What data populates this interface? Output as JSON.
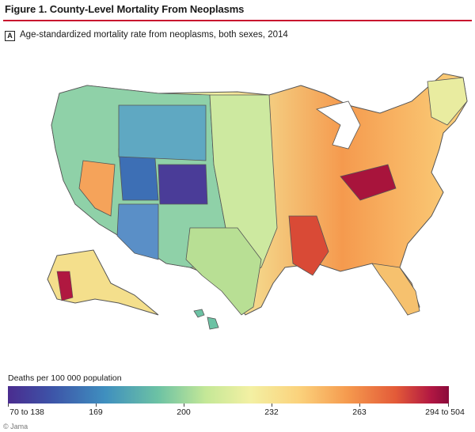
{
  "figure": {
    "title": "Figure 1. County-Level Mortality From Neoplasms",
    "panel_label": "A",
    "caption": "Age-standardized mortality rate from neoplasms, both sexes, 2014"
  },
  "legend": {
    "title": "Deaths per 100 000 population",
    "ticks": [
      "70 to 138",
      "169",
      "200",
      "232",
      "263",
      "294 to 504"
    ]
  },
  "credit": "© Jama",
  "colors": {
    "low": "#4a2c8f",
    "mid_low": "#3f8fbf",
    "mid": "#f3f0a3",
    "mid_high": "#f59a4e",
    "high": "#8a0b3b",
    "title_rule": "#c8102e"
  },
  "map": {
    "regions": [
      {
        "name": "Alaska",
        "level": 0.55
      },
      {
        "name": "Hawaii",
        "level": 0.35
      },
      {
        "name": "Nevada",
        "level": 0.7
      },
      {
        "name": "Utah",
        "level": 0.1
      },
      {
        "name": "Colorado",
        "level": 0.05
      },
      {
        "name": "Arizona",
        "level": 0.2
      },
      {
        "name": "Kentucky",
        "level": 0.95
      },
      {
        "name": "Mississippi",
        "level": 0.85
      }
    ]
  }
}
